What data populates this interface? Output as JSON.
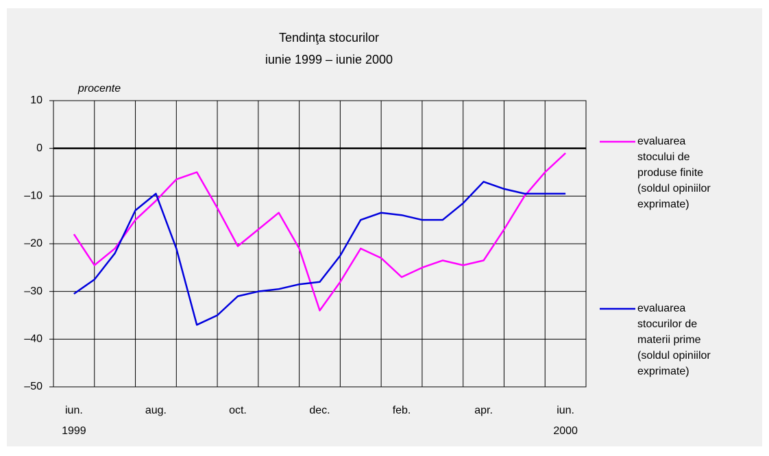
{
  "chart_data": {
    "type": "line",
    "title": "Tendinţa stocurilor",
    "subtitle": "iunie 1999 – iunie 2000",
    "y_axis_label": "procente",
    "categories": [
      "iun.\n1999",
      null,
      "aug.",
      null,
      "oct.",
      null,
      "dec.",
      null,
      "feb.",
      null,
      "apr.",
      null,
      "iun.\n2000"
    ],
    "x": [
      0,
      0.5,
      1,
      1.5,
      2,
      2.5,
      3,
      3.5,
      4,
      4.5,
      5,
      5.5,
      6,
      6.5,
      7,
      7.5,
      8,
      8.5,
      9,
      9.5,
      10,
      10.5,
      11,
      11.5,
      12
    ],
    "xlim": [
      -0.5,
      12.5
    ],
    "series": [
      {
        "name": "evaluarea\nstocului de\nproduse finite\n(soldul opiniilor\nexprimate)",
        "color": "#ff00ff",
        "values": [
          -18,
          -24.5,
          -21,
          -15,
          -11,
          -6.5,
          -5,
          -12.5,
          -20.5,
          -17,
          -13.5,
          -21,
          -34,
          -28,
          -21,
          -23,
          -27,
          -25,
          -23.5,
          -24.5,
          -23.5,
          -17,
          -10,
          -5,
          -1
        ]
      },
      {
        "name": "evaluarea\nstocurilor de\nmaterii prime\n(soldul opiniilor\nexprimate)",
        "color": "#0000dd",
        "values": [
          -30.5,
          -27.5,
          -22,
          -13,
          -9.5,
          -21,
          -37,
          -35,
          -31,
          -30,
          -29.5,
          -28.5,
          -28,
          -22.5,
          -15,
          -13.5,
          -14,
          -15,
          -15,
          -11.5,
          -7,
          -8.5,
          -9.5,
          -9.5,
          -9.5
        ]
      }
    ],
    "ylim": [
      -50,
      10
    ],
    "yticks": [
      10,
      0,
      {
        "value": -10,
        "label": "–10"
      },
      {
        "value": -20,
        "label": "–20"
      },
      {
        "value": -30,
        "label": "–30"
      },
      {
        "value": -40,
        "label": "–40"
      },
      {
        "value": -50,
        "label": "–50"
      }
    ],
    "grid": true
  }
}
